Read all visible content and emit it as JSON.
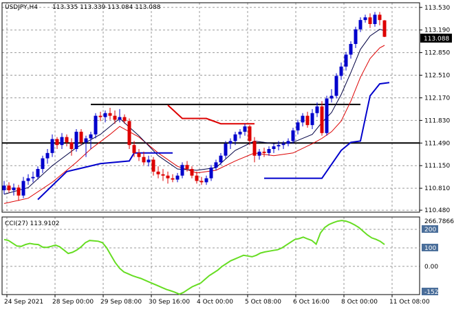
{
  "header": {
    "symbol_tf": "USDJPY,H4",
    "ohlc": "113.335 113.339 113.084 113.088"
  },
  "colors": {
    "bull": "#0000cc",
    "bear": "#dd0000",
    "ma_fast": "#000044",
    "ma_slow": "#dd0000",
    "stop_up": "#0000cc",
    "stop_dn": "#dd0000",
    "cci": "#66dd22",
    "grid": "#9a9a9a",
    "price_box": "#000000"
  },
  "chart_data": [
    {
      "type": "candlestick",
      "title": "USDJPY,H4",
      "ylim": [
        110.45,
        113.6
      ],
      "grid": true,
      "y_ticks": [
        "113.530",
        "113.190",
        "112.850",
        "112.510",
        "112.170",
        "111.830",
        "111.490",
        "111.150",
        "110.810",
        "110.480"
      ],
      "current_price": "113.088",
      "x_ticks": [
        {
          "label": "24 Sep 2021",
          "index": 0
        },
        {
          "label": "28 Sep 00:00",
          "index": 10
        },
        {
          "label": "29 Sep 08:00",
          "index": 20
        },
        {
          "label": "30 Sep 16:00",
          "index": 30
        },
        {
          "label": "4 Oct 00:00",
          "index": 40
        },
        {
          "label": "5 Oct 08:00",
          "index": 50
        },
        {
          "label": "6 Oct 16:00",
          "index": 60
        },
        {
          "label": "8 Oct 00:00",
          "index": 70
        },
        {
          "label": "11 Oct 08:00",
          "index": 80
        }
      ],
      "candles": [
        [
          110.78,
          110.92,
          110.72,
          110.85
        ],
        [
          110.85,
          110.9,
          110.74,
          110.78
        ],
        [
          110.78,
          110.88,
          110.7,
          110.82
        ],
        [
          110.82,
          110.86,
          110.62,
          110.7
        ],
        [
          110.7,
          110.98,
          110.66,
          110.92
        ],
        [
          110.92,
          111.02,
          110.86,
          110.96
        ],
        [
          110.96,
          111.06,
          110.9,
          110.98
        ],
        [
          110.98,
          111.14,
          110.94,
          111.1
        ],
        [
          111.1,
          111.3,
          111.04,
          111.26
        ],
        [
          111.26,
          111.4,
          111.18,
          111.34
        ],
        [
          111.34,
          111.62,
          111.28,
          111.55
        ],
        [
          111.55,
          111.58,
          111.4,
          111.46
        ],
        [
          111.46,
          111.64,
          111.4,
          111.58
        ],
        [
          111.58,
          111.62,
          111.44,
          111.5
        ],
        [
          111.5,
          111.56,
          111.3,
          111.4
        ],
        [
          111.4,
          111.7,
          111.36,
          111.66
        ],
        [
          111.66,
          111.7,
          111.46,
          111.5
        ],
        [
          111.5,
          111.6,
          111.28,
          111.56
        ],
        [
          111.56,
          111.66,
          111.4,
          111.62
        ],
        [
          111.62,
          111.94,
          111.56,
          111.9
        ],
        [
          111.9,
          111.96,
          111.82,
          111.88
        ],
        [
          111.88,
          111.98,
          111.8,
          111.94
        ],
        [
          111.94,
          112.02,
          111.84,
          111.9
        ],
        [
          111.9,
          111.98,
          111.78,
          111.84
        ],
        [
          111.84,
          112.0,
          111.8,
          111.88
        ],
        [
          111.88,
          111.92,
          111.78,
          111.82
        ],
        [
          111.82,
          111.86,
          111.4,
          111.46
        ],
        [
          111.46,
          111.52,
          111.28,
          111.34
        ],
        [
          111.34,
          111.4,
          111.22,
          111.28
        ],
        [
          111.28,
          111.36,
          111.16,
          111.2
        ],
        [
          111.2,
          111.3,
          111.14,
          111.24
        ],
        [
          111.24,
          111.28,
          111.0,
          111.06
        ],
        [
          111.06,
          111.14,
          110.96,
          111.02
        ],
        [
          111.02,
          111.1,
          110.92,
          111.0
        ],
        [
          111.0,
          111.06,
          110.88,
          110.96
        ],
        [
          110.96,
          111.02,
          110.9,
          110.94
        ],
        [
          110.94,
          111.04,
          110.9,
          111.0
        ],
        [
          111.0,
          111.2,
          110.96,
          111.16
        ],
        [
          111.16,
          111.22,
          111.06,
          111.1
        ],
        [
          111.1,
          111.14,
          110.96,
          111.0
        ],
        [
          111.0,
          111.06,
          110.88,
          110.92
        ],
        [
          110.92,
          110.98,
          110.86,
          110.9
        ],
        [
          110.9,
          111.0,
          110.86,
          110.96
        ],
        [
          110.96,
          111.16,
          110.92,
          111.12
        ],
        [
          111.12,
          111.24,
          111.08,
          111.2
        ],
        [
          111.2,
          111.34,
          111.16,
          111.3
        ],
        [
          111.3,
          111.52,
          111.26,
          111.48
        ],
        [
          111.48,
          111.56,
          111.4,
          111.52
        ],
        [
          111.52,
          111.66,
          111.46,
          111.62
        ],
        [
          111.62,
          111.7,
          111.56,
          111.66
        ],
        [
          111.66,
          111.78,
          111.6,
          111.74
        ],
        [
          111.74,
          111.76,
          111.46,
          111.52
        ],
        [
          111.52,
          111.58,
          111.2,
          111.3
        ],
        [
          111.3,
          111.4,
          111.24,
          111.36
        ],
        [
          111.36,
          111.42,
          111.28,
          111.34
        ],
        [
          111.34,
          111.44,
          111.3,
          111.4
        ],
        [
          111.4,
          111.48,
          111.34,
          111.44
        ],
        [
          111.44,
          111.52,
          111.38,
          111.46
        ],
        [
          111.46,
          111.52,
          111.4,
          111.48
        ],
        [
          111.48,
          111.56,
          111.44,
          111.52
        ],
        [
          111.52,
          111.72,
          111.48,
          111.68
        ],
        [
          111.68,
          111.84,
          111.62,
          111.8
        ],
        [
          111.8,
          111.94,
          111.74,
          111.9
        ],
        [
          111.9,
          111.96,
          111.72,
          111.76
        ],
        [
          111.76,
          112.0,
          111.7,
          111.94
        ],
        [
          111.94,
          112.1,
          111.88,
          112.04
        ],
        [
          112.04,
          112.12,
          111.6,
          111.64
        ],
        [
          111.64,
          112.2,
          111.6,
          112.16
        ],
        [
          112.16,
          112.3,
          112.1,
          112.2
        ],
        [
          112.2,
          112.54,
          112.16,
          112.5
        ],
        [
          112.5,
          112.7,
          112.44,
          112.64
        ],
        [
          112.64,
          112.86,
          112.58,
          112.82
        ],
        [
          112.82,
          113.02,
          112.76,
          112.98
        ],
        [
          112.98,
          113.24,
          112.92,
          113.2
        ],
        [
          113.2,
          113.38,
          113.16,
          113.34
        ],
        [
          113.34,
          113.42,
          113.3,
          113.38
        ],
        [
          113.38,
          113.44,
          113.22,
          113.28
        ],
        [
          113.28,
          113.46,
          113.24,
          113.42
        ],
        [
          113.42,
          113.46,
          113.26,
          113.34
        ],
        [
          113.335,
          113.339,
          113.084,
          113.088
        ]
      ],
      "ma_fast": [
        [
          0,
          110.72
        ],
        [
          5,
          110.82
        ],
        [
          10,
          111.15
        ],
        [
          15,
          111.42
        ],
        [
          20,
          111.62
        ],
        [
          24,
          111.86
        ],
        [
          28,
          111.6
        ],
        [
          32,
          111.3
        ],
        [
          36,
          111.1
        ],
        [
          40,
          111.08
        ],
        [
          44,
          111.12
        ],
        [
          48,
          111.38
        ],
        [
          52,
          111.52
        ],
        [
          56,
          111.48
        ],
        [
          60,
          111.5
        ],
        [
          64,
          111.62
        ],
        [
          66,
          111.8
        ],
        [
          68,
          111.95
        ],
        [
          70,
          112.22
        ],
        [
          72,
          112.55
        ],
        [
          74,
          112.9
        ],
        [
          76,
          113.1
        ],
        [
          78,
          113.2
        ],
        [
          79,
          113.18
        ]
      ],
      "ma_slow": [
        [
          0,
          110.58
        ],
        [
          5,
          110.66
        ],
        [
          10,
          110.9
        ],
        [
          15,
          111.2
        ],
        [
          18,
          111.4
        ],
        [
          22,
          111.62
        ],
        [
          24,
          111.74
        ],
        [
          28,
          111.58
        ],
        [
          32,
          111.34
        ],
        [
          36,
          111.14
        ],
        [
          40,
          111.04
        ],
        [
          44,
          111.08
        ],
        [
          48,
          111.22
        ],
        [
          52,
          111.34
        ],
        [
          56,
          111.3
        ],
        [
          60,
          111.34
        ],
        [
          64,
          111.48
        ],
        [
          66,
          111.56
        ],
        [
          68,
          111.66
        ],
        [
          70,
          111.82
        ],
        [
          72,
          112.12
        ],
        [
          74,
          112.48
        ],
        [
          76,
          112.76
        ],
        [
          78,
          112.92
        ],
        [
          79,
          112.96
        ]
      ],
      "stop_up_segments": [
        [
          [
            7,
            110.64
          ],
          [
            13,
            111.06
          ],
          [
            20,
            111.18
          ],
          [
            26,
            111.22
          ],
          [
            27,
            111.34
          ],
          [
            35,
            111.34
          ]
        ],
        [
          [
            54,
            110.96
          ],
          [
            66,
            110.96
          ],
          [
            70,
            111.38
          ],
          [
            72,
            111.5
          ],
          [
            74,
            111.52
          ],
          [
            76,
            112.2
          ],
          [
            78,
            112.38
          ],
          [
            80,
            112.4
          ]
        ]
      ],
      "stop_dn_segments": [
        [
          [
            34,
            112.06
          ],
          [
            37,
            111.86
          ],
          [
            42,
            111.86
          ],
          [
            45,
            111.78
          ],
          [
            52,
            111.78
          ]
        ]
      ],
      "hlines": [
        111.49,
        112.07
      ],
      "hline_segments": [
        {
          "y": 112.07,
          "from_index": 18,
          "to_index": 74
        }
      ]
    },
    {
      "type": "line",
      "title": "CCI(27) 113.9102",
      "ylim": [
        -152.2932,
        266.7866
      ],
      "y_ticks": [
        "266.7866",
        "200",
        "100",
        "0.00",
        "-152.2932"
      ],
      "highlight_ticks": [
        "200",
        "100",
        "-152.2932"
      ],
      "levels": [
        200,
        100
      ],
      "series": [
        {
          "values": [
            145,
            140,
            125,
            110,
            108,
            118,
            124,
            120,
            118,
            104,
            102,
            108,
            115,
            106,
            88,
            70,
            76,
            88,
            105,
            128,
            140,
            138,
            136,
            128,
            100,
            60,
            20,
            -10,
            -30,
            -40,
            -50,
            -58,
            -65,
            -75,
            -85,
            -95,
            -105,
            -115,
            -125,
            -132,
            -140,
            -150,
            -140,
            -125,
            -110,
            -100,
            -90,
            -70,
            -50,
            -35,
            -20,
            0,
            15,
            30,
            40,
            50,
            60,
            56,
            52,
            60,
            72,
            78,
            82,
            86,
            90,
            100,
            115,
            130,
            145,
            150,
            158,
            148,
            140,
            120,
            180,
            210,
            226,
            236,
            244,
            248,
            244,
            236,
            224,
            210,
            190,
            170,
            154,
            146,
            135,
            118
          ]
        }
      ]
    }
  ]
}
